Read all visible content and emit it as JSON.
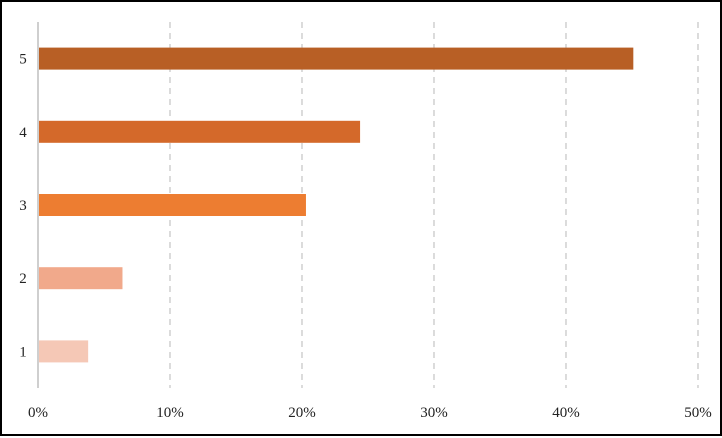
{
  "chart_data": {
    "type": "bar",
    "orientation": "horizontal",
    "categories": [
      "1",
      "2",
      "3",
      "4",
      "5"
    ],
    "values": [
      3.8,
      6.4,
      20.3,
      24.4,
      45.1
    ],
    "value_unit": "percent",
    "xlim": [
      0,
      50
    ],
    "xticks": [
      "0%",
      "10%",
      "20%",
      "30%",
      "40%",
      "50%"
    ],
    "grid": "vertical-dashed",
    "legend": "none",
    "colors": [
      "#f5c8b6",
      "#f1a98b",
      "#ed7d31",
      "#d4692a",
      "#b85f25"
    ]
  }
}
